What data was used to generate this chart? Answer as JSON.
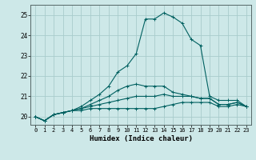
{
  "xlabel": "Humidex (Indice chaleur)",
  "bg_color": "#cde8e8",
  "grid_color": "#a8cccc",
  "line_color": "#006060",
  "x_values": [
    0,
    1,
    2,
    3,
    4,
    5,
    6,
    7,
    8,
    9,
    10,
    11,
    12,
    13,
    14,
    15,
    16,
    17,
    18,
    19,
    20,
    21,
    22,
    23
  ],
  "lines": [
    [
      20.0,
      19.8,
      20.1,
      20.2,
      20.3,
      20.3,
      20.4,
      20.4,
      20.4,
      20.4,
      20.4,
      20.4,
      20.4,
      20.4,
      20.5,
      20.6,
      20.7,
      20.7,
      20.7,
      20.7,
      20.5,
      20.5,
      20.6,
      20.5
    ],
    [
      20.0,
      19.8,
      20.1,
      20.2,
      20.3,
      20.4,
      20.5,
      20.6,
      20.7,
      20.8,
      20.9,
      21.0,
      21.0,
      21.0,
      21.1,
      21.0,
      21.0,
      21.0,
      20.9,
      20.9,
      20.6,
      20.6,
      20.7,
      20.5
    ],
    [
      20.0,
      19.8,
      20.1,
      20.2,
      20.3,
      20.4,
      20.6,
      20.8,
      21.0,
      21.3,
      21.5,
      21.6,
      21.5,
      21.5,
      21.5,
      21.2,
      21.1,
      21.0,
      20.9,
      20.9,
      20.6,
      20.6,
      20.7,
      20.5
    ],
    [
      20.0,
      19.8,
      20.1,
      20.2,
      20.3,
      20.5,
      20.8,
      21.1,
      21.5,
      22.2,
      22.5,
      23.1,
      24.8,
      24.8,
      25.1,
      24.9,
      24.6,
      23.8,
      23.5,
      21.0,
      20.8,
      20.8,
      20.8,
      20.5
    ]
  ],
  "ylim": [
    19.6,
    25.5
  ],
  "xlim": [
    -0.5,
    23.5
  ],
  "yticks": [
    20,
    21,
    22,
    23,
    24,
    25
  ],
  "xticks": [
    0,
    1,
    2,
    3,
    4,
    5,
    6,
    7,
    8,
    9,
    10,
    11,
    12,
    13,
    14,
    15,
    16,
    17,
    18,
    19,
    20,
    21,
    22,
    23
  ],
  "figsize": [
    3.2,
    2.0
  ],
  "dpi": 100
}
